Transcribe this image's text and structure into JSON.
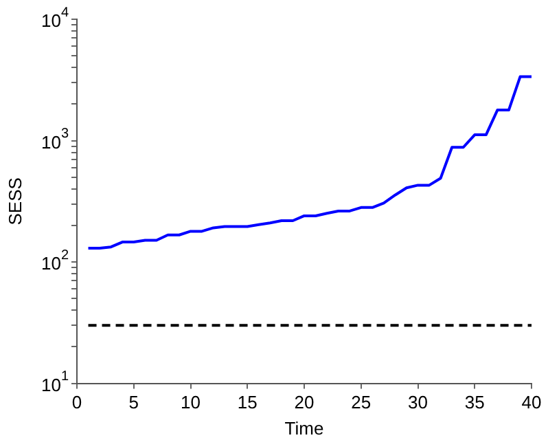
{
  "chart_data": {
    "type": "line",
    "xlabel": "Time",
    "ylabel": "SESS",
    "log": "y",
    "grid": false,
    "legend": false,
    "marker": "none",
    "xlim": [
      0,
      40
    ],
    "xticks": [
      0,
      5,
      10,
      15,
      20,
      25,
      30,
      35,
      40
    ],
    "ylim": [
      10,
      10000
    ],
    "yticks": [
      {
        "value": 10,
        "label": "10$^{1}$"
      },
      {
        "value": 20,
        "label": null
      },
      {
        "value": 30,
        "label": null
      },
      {
        "value": 40,
        "label": null
      },
      {
        "value": 50,
        "label": null
      },
      {
        "value": 60,
        "label": null
      },
      {
        "value": 70,
        "label": null
      },
      {
        "value": 80,
        "label": null
      },
      {
        "value": 90,
        "label": null
      },
      {
        "value": 100,
        "label": "10$^{2}$"
      },
      {
        "value": 200,
        "label": null
      },
      {
        "value": 300,
        "label": null
      },
      {
        "value": 400,
        "label": null
      },
      {
        "value": 500,
        "label": null
      },
      {
        "value": 600,
        "label": null
      },
      {
        "value": 700,
        "label": null
      },
      {
        "value": 800,
        "label": null
      },
      {
        "value": 900,
        "label": null
      },
      {
        "value": 1000,
        "label": "10$^{3}$"
      },
      {
        "value": 2000,
        "label": null
      },
      {
        "value": 3000,
        "label": null
      },
      {
        "value": 4000,
        "label": null
      },
      {
        "value": 5000,
        "label": null
      },
      {
        "value": 6000,
        "label": null
      },
      {
        "value": 7000,
        "label": null
      },
      {
        "value": 8000,
        "label": null
      },
      {
        "value": 9000,
        "label": null
      },
      {
        "value": 10000,
        "label": "10$^{4}$"
      }
    ],
    "series": [
      {
        "color": "#0000ff",
        "line_style": "solid",
        "x": [
          1,
          2,
          3,
          4,
          5,
          6,
          7,
          8,
          9,
          10,
          11,
          12,
          13,
          14,
          15,
          16,
          17,
          18,
          19,
          20,
          21,
          22,
          23,
          24,
          25,
          26,
          27,
          28,
          29,
          30,
          31,
          32,
          33,
          34,
          35,
          36,
          37,
          38,
          39,
          40
        ],
        "values": [
          130,
          130,
          133,
          146,
          146,
          151,
          151,
          167,
          167,
          179,
          179,
          191,
          196,
          196,
          196,
          203,
          210,
          219,
          219,
          240,
          240,
          252,
          263,
          263,
          281,
          281,
          306,
          356,
          408,
          429,
          429,
          490,
          881,
          881,
          1117,
          1117,
          1786,
          1786,
          3360,
          3360
        ]
      },
      {
        "color": "#000000",
        "line_style": "dashed",
        "x": [
          1,
          40
        ],
        "values": [
          30,
          30
        ]
      }
    ]
  }
}
